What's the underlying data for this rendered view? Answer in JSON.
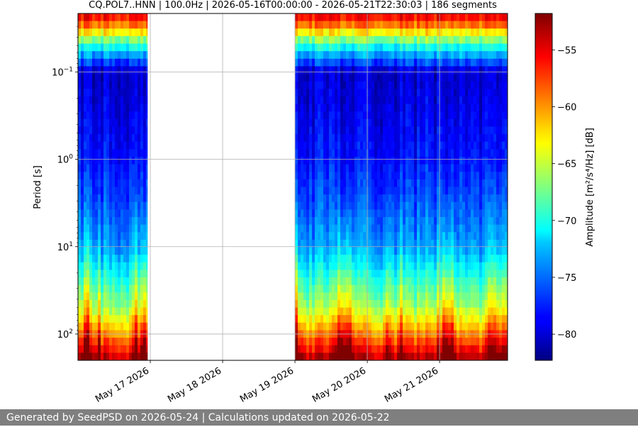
{
  "chart_data": {
    "type": "heatmap",
    "title": "CQ.POL7..HNN | 100.0Hz | 2026-05-16T00:00:00 - 2026-05-21T22:30:03 | 186 segments",
    "xlabel": "",
    "ylabel": "Period [s]",
    "colorbar_label": "Amplitude [m²/s⁴/Hz] [dB]",
    "x_tick_labels": [
      "May 17 2026",
      "May 18 2026",
      "May 19 2026",
      "May 20 2026",
      "May 21 2026"
    ],
    "x_ticks_days": [
      1,
      2,
      3,
      4,
      5
    ],
    "x_range_days": [
      0,
      5.94
    ],
    "y_scale": "log",
    "y_range": [
      0.0214,
      200
    ],
    "y_ticks": [
      0.1,
      1,
      10,
      100
    ],
    "y_tick_exponents": [
      "−1",
      "0",
      "1",
      "2"
    ],
    "y_axis_inverted": true,
    "colorbar_ticks": [
      -55,
      -60,
      -65,
      -70,
      -75,
      -80
    ],
    "colorbar_range": [
      -82.3,
      -51.8
    ],
    "colormap": "jet",
    "grid": true,
    "data_segments_days": [
      [
        0,
        0.96
      ],
      [
        3.0,
        5.94
      ]
    ],
    "gaps_days": [
      [
        0.96,
        3.0
      ],
      [
        3.99,
        4.01
      ],
      [
        4.99,
        5.01
      ]
    ],
    "amplitude_profile": [
      {
        "period_s": 0.025,
        "amplitude_db": -56
      },
      {
        "period_s": 0.05,
        "amplitude_db": -70
      },
      {
        "period_s": 0.1,
        "amplitude_db": -80
      },
      {
        "period_s": 1,
        "amplitude_db": -78
      },
      {
        "period_s": 10,
        "amplitude_db": -74
      },
      {
        "period_s": 50,
        "amplitude_db": -66
      },
      {
        "period_s": 100,
        "amplitude_db": -60
      },
      {
        "period_s": 200,
        "amplitude_db": -53
      }
    ]
  },
  "footer": {
    "text": "Generated by SeedPSD on 2026-05-24 | Calculations updated on 2026-05-22"
  }
}
